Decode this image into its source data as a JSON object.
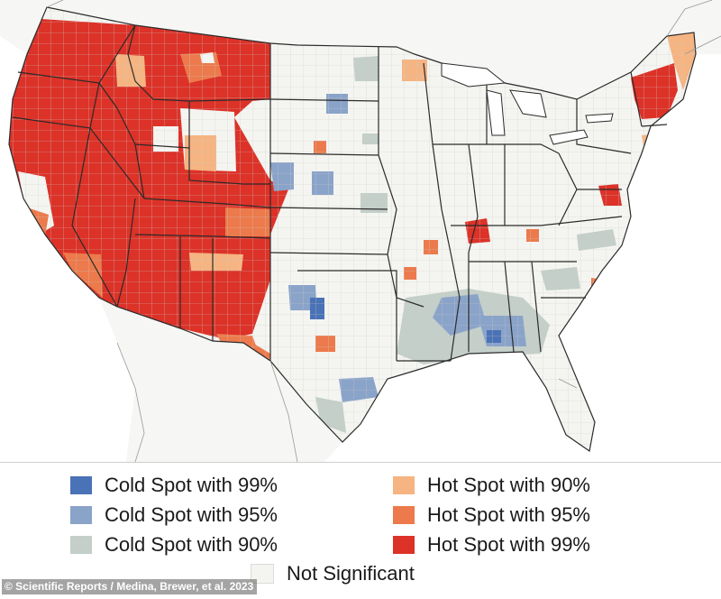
{
  "map": {
    "colors": {
      "land": "#f4f4f1",
      "water": "#ffffff",
      "state_border": "#2b2b2b",
      "county_line": "#c9c9c6"
    }
  },
  "legend": {
    "items": [
      {
        "label": "Cold Spot with 99%",
        "color": "#4a72b6"
      },
      {
        "label": "Cold Spot with 95%",
        "color": "#8aa3c9"
      },
      {
        "label": "Cold Spot with 90%",
        "color": "#c4cfc9"
      },
      {
        "label": "Hot Spot with 90%",
        "color": "#f5b482"
      },
      {
        "label": "Hot Spot with 95%",
        "color": "#ec7a4c"
      },
      {
        "label": "Hot Spot with 99%",
        "color": "#dc3228"
      },
      {
        "label": "Not Significant",
        "color": "#f4f4f1"
      }
    ]
  },
  "credit": "© Scientific Reports / Medina, Brewer, et al. 2023"
}
